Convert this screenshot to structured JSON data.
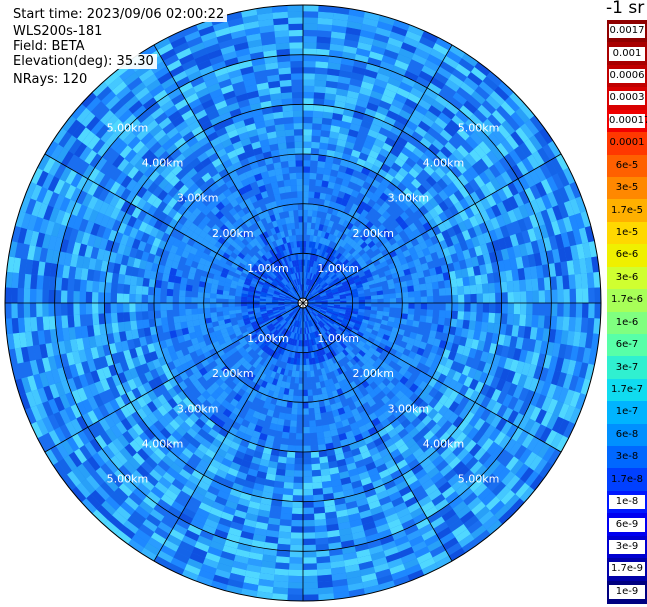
{
  "info": {
    "start_time": "Start time: 2023/09/06 02:00:22",
    "instrument": "WLS200s-181",
    "field": "Field: BETA",
    "elevation": "Elevation(deg): 35.30",
    "nrays": "NRays: 120"
  },
  "chart_data": {
    "type": "heatmap",
    "projection": "polar-ppi",
    "field": "BETA",
    "range_ring_labels": [
      "1.00km",
      "2.00km",
      "3.00km",
      "4.00km",
      "5.00km"
    ],
    "range_rings_km": [
      1,
      2,
      3,
      4,
      5
    ],
    "max_range_km": 6,
    "azimuth_spokes_deg": [
      0,
      30,
      60,
      90,
      120,
      150,
      180,
      210,
      240,
      270,
      300,
      330
    ],
    "nrays": 120,
    "colorbar": {
      "unit_label": "-1 sr",
      "tick_labels": [
        "1e-9",
        "1.7e-9",
        "3e-9",
        "6e-9",
        "1e-8",
        "1.7e-8",
        "3e-8",
        "6e-8",
        "1e-7",
        "1.7e-7",
        "3e-7",
        "6e-7",
        "1e-6",
        "1.7e-6",
        "3e-6",
        "6e-6",
        "1e-5",
        "1.7e-5",
        "3e-5",
        "6e-5",
        "0.0001",
        "0.00017",
        "0.0003",
        "0.0006",
        "0.001",
        "0.0017"
      ],
      "colors": [
        "#000080",
        "#0000a8",
        "#0000d0",
        "#0000f0",
        "#0018ff",
        "#0040ff",
        "#0068ff",
        "#0090ff",
        "#00b4ff",
        "#10dcf0",
        "#30f0d0",
        "#58ffa8",
        "#80ff80",
        "#a8ff58",
        "#d0ff30",
        "#f0f000",
        "#ffd800",
        "#ffb000",
        "#ff8800",
        "#ff6000",
        "#ff3800",
        "#f00000",
        "#d80000",
        "#c00000",
        "#a80000",
        "#900000"
      ]
    }
  }
}
